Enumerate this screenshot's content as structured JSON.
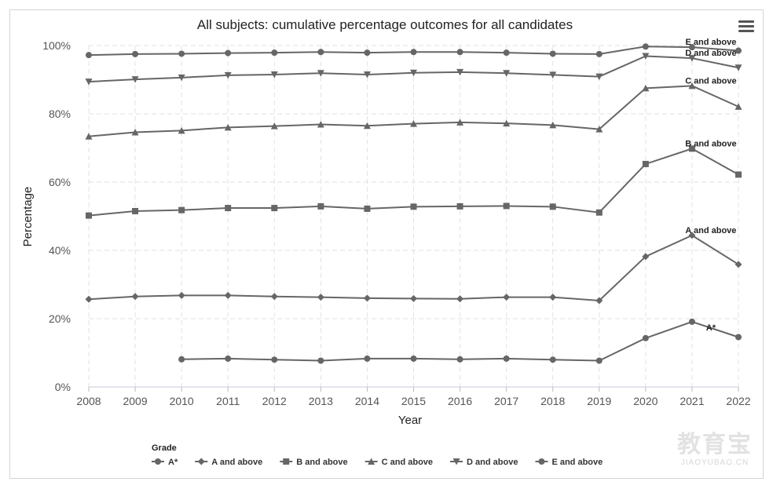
{
  "chart_data": {
    "type": "line",
    "title": "All subjects: cumulative percentage outcomes for all candidates",
    "xlabel": "Year",
    "ylabel": "Percentage",
    "ylim": [
      0,
      100
    ],
    "yticks": [
      "0%",
      "20%",
      "40%",
      "60%",
      "80%",
      "100%"
    ],
    "ytick_values": [
      0,
      20,
      40,
      60,
      80,
      100
    ],
    "x": [
      2008,
      2009,
      2010,
      2011,
      2012,
      2013,
      2014,
      2015,
      2016,
      2017,
      2018,
      2019,
      2020,
      2021,
      2022
    ],
    "grid": true,
    "legend_title": "Grade",
    "legend_position": "bottom-left",
    "line_color": "#666666",
    "series": [
      {
        "name": "A*",
        "label": "A*",
        "marker": "circle",
        "values": [
          null,
          null,
          8.1,
          8.3,
          8.0,
          7.7,
          8.3,
          8.3,
          8.1,
          8.3,
          8.0,
          7.7,
          14.3,
          19.1,
          14.6
        ]
      },
      {
        "name": "A and above",
        "label": "A and above",
        "marker": "diamond",
        "values": [
          25.7,
          26.5,
          26.8,
          26.8,
          26.5,
          26.3,
          26.0,
          25.9,
          25.8,
          26.3,
          26.3,
          25.3,
          38.2,
          44.4,
          35.9
        ]
      },
      {
        "name": "B and above",
        "label": "B and above",
        "marker": "square",
        "values": [
          50.2,
          51.5,
          51.8,
          52.4,
          52.4,
          52.9,
          52.2,
          52.8,
          52.9,
          53.0,
          52.8,
          51.1,
          65.3,
          69.8,
          62.2
        ]
      },
      {
        "name": "C and above",
        "label": "C and above",
        "marker": "triangle-up",
        "values": [
          73.4,
          74.6,
          75.1,
          76.0,
          76.4,
          76.9,
          76.5,
          77.1,
          77.5,
          77.2,
          76.7,
          75.5,
          87.5,
          88.2,
          82.1
        ]
      },
      {
        "name": "D and above",
        "label": "D and above",
        "marker": "triangle-down",
        "values": [
          89.4,
          90.1,
          90.6,
          91.3,
          91.5,
          91.9,
          91.5,
          92.0,
          92.2,
          91.9,
          91.4,
          90.9,
          96.9,
          96.3,
          93.5
        ]
      },
      {
        "name": "E and above",
        "label": "E and above",
        "marker": "circle",
        "values": [
          97.2,
          97.5,
          97.6,
          97.8,
          97.9,
          98.1,
          97.9,
          98.1,
          98.1,
          97.9,
          97.6,
          97.5,
          99.7,
          99.5,
          98.5
        ]
      }
    ]
  },
  "watermark": {
    "main": "教育宝",
    "sub": "JIAOYUBAO.CN"
  }
}
